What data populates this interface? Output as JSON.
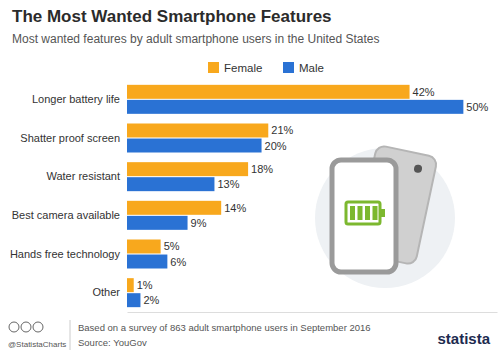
{
  "chart_data": {
    "type": "bar",
    "orientation": "horizontal",
    "title": "The Most Wanted Smartphone Features",
    "subtitle": "Most wanted features by adult smartphone users in the United States",
    "categories": [
      "Longer battery life",
      "Shatter proof screen",
      "Water resistant",
      "Best camera available",
      "Hands free technology",
      "Other"
    ],
    "series": [
      {
        "name": "Female",
        "color": "#f8a81d",
        "values": [
          42,
          21,
          18,
          14,
          5,
          1
        ],
        "value_labels": [
          "42%",
          "21%",
          "18%",
          "14%",
          "5%",
          "1%"
        ]
      },
      {
        "name": "Male",
        "color": "#2a72d4",
        "values": [
          50,
          20,
          13,
          9,
          6,
          2
        ],
        "value_labels": [
          "50%",
          "20%",
          "13%",
          "9%",
          "6%",
          "2%"
        ]
      }
    ],
    "xlim": [
      0,
      55
    ],
    "grid": false,
    "legend": "top",
    "data_labels": true,
    "tick_labels": "y",
    "annotations": [
      "Based on a survey of 863 adult smartphone users in September 2016",
      "Source: YouGov",
      "@StatistaCharts",
      "statista"
    ]
  }
}
